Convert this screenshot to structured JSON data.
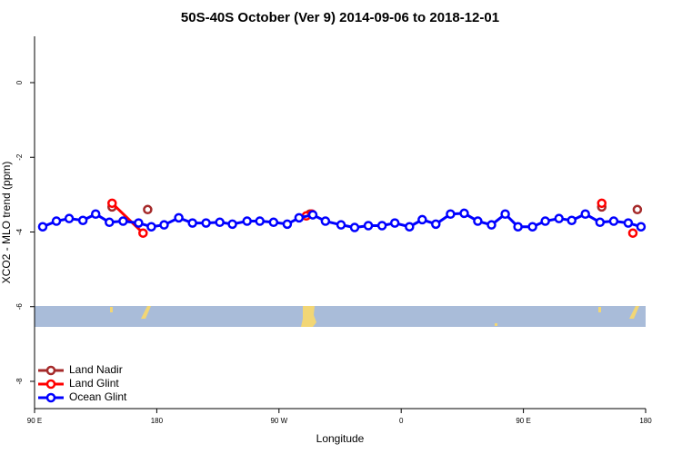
{
  "chart_data": {
    "type": "line",
    "title": "50S-40S October (Ver 9)   2014-09-06 to 2018-12-01",
    "x_label": "Longitude",
    "y_label": "XCO2 - MLO trend (ppm)",
    "xlim": [
      90,
      540
    ],
    "xticks": [
      {
        "value": 90,
        "label": "90 E"
      },
      {
        "value": 180,
        "label": "180"
      },
      {
        "value": 270,
        "label": "90 W"
      },
      {
        "value": 360,
        "label": "0"
      },
      {
        "value": 450,
        "label": "90 E"
      },
      {
        "value": 540,
        "label": "180"
      }
    ],
    "ylim": [
      -8.73,
      1.24
    ],
    "yticks": [
      0,
      -2,
      -4,
      -6,
      -8
    ],
    "legend": "bottom-left",
    "series": [
      {
        "name": "Land Nadir",
        "color": "#a52a2a",
        "x": [
          147.1,
          null,
          173.3,
          null,
          292.8,
          null,
          507.7,
          null,
          533.9
        ],
        "values": [
          -3.33,
          null,
          -3.4,
          null,
          -3.52,
          null,
          -3.33,
          null,
          -3.4
        ]
      },
      {
        "name": "Land Glint",
        "color": "#ff0000",
        "x": [
          147.1,
          169.9,
          null,
          290.1,
          294.2,
          null,
          507.7,
          null,
          530.6
        ],
        "values": [
          -3.23,
          -4.03,
          null,
          -3.57,
          -3.52,
          null,
          -3.23,
          null,
          -4.03
        ]
      },
      {
        "name": "Ocean Glint",
        "color": "#0000ff",
        "x": [
          96.0,
          106.1,
          115.5,
          125.6,
          135.0,
          145.1,
          155.2,
          166.6,
          176.0,
          185.4,
          196.2,
          206.3,
          216.3,
          226.4,
          235.7,
          246.5,
          255.9,
          266.0,
          276.1,
          284.8,
          294.9,
          304.2,
          315.7,
          325.7,
          335.8,
          345.9,
          355.3,
          366.1,
          375.5,
          385.5,
          396.3,
          406.4,
          416.4,
          426.5,
          436.6,
          446.0,
          456.7,
          466.1,
          476.2,
          485.6,
          495.6,
          506.4,
          516.5,
          527.2,
          536.6
        ],
        "values": [
          -3.86,
          -3.71,
          -3.64,
          -3.69,
          -3.52,
          -3.74,
          -3.71,
          -3.76,
          -3.86,
          -3.81,
          -3.62,
          -3.76,
          -3.76,
          -3.74,
          -3.79,
          -3.71,
          -3.71,
          -3.74,
          -3.79,
          -3.62,
          -3.54,
          -3.71,
          -3.81,
          -3.88,
          -3.83,
          -3.83,
          -3.76,
          -3.86,
          -3.67,
          -3.79,
          -3.52,
          -3.5,
          -3.71,
          -3.81,
          -3.52,
          -3.86,
          -3.86,
          -3.71,
          -3.64,
          -3.69,
          -3.52,
          -3.74,
          -3.71,
          -3.76,
          -3.86
        ]
      }
    ]
  }
}
